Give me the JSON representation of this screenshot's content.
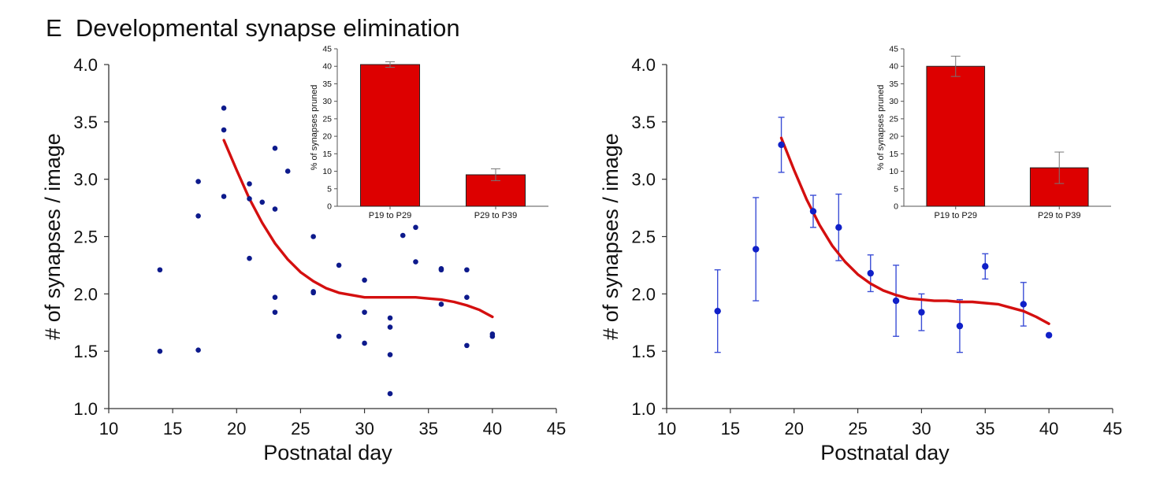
{
  "figure": {
    "panel_letter": "E",
    "title": "Developmental synapse elimination"
  },
  "colors": {
    "point": "#0d1a8c",
    "point_right": "#1020c8",
    "error_bar": "#3b4ed6",
    "fit_line": "#d40f0f",
    "bar_fill": "#dd0000",
    "axis": "#333333"
  },
  "chart_data": [
    {
      "type": "scatter",
      "xlabel": "Postnatal day",
      "ylabel": "# of synapses / image",
      "xlim": [
        10,
        45
      ],
      "ylim": [
        1.0,
        4.0
      ],
      "xticks": [
        10,
        15,
        20,
        25,
        30,
        35,
        40,
        45
      ],
      "yticks": [
        1.0,
        1.5,
        2.0,
        2.5,
        3.0,
        3.5,
        4.0
      ],
      "points": [
        {
          "x": 14,
          "y": 2.21
        },
        {
          "x": 14,
          "y": 1.5
        },
        {
          "x": 17,
          "y": 2.98
        },
        {
          "x": 17,
          "y": 2.68
        },
        {
          "x": 17,
          "y": 1.51
        },
        {
          "x": 19,
          "y": 3.62
        },
        {
          "x": 19,
          "y": 3.43
        },
        {
          "x": 19,
          "y": 2.85
        },
        {
          "x": 21,
          "y": 2.96
        },
        {
          "x": 21,
          "y": 2.83
        },
        {
          "x": 21,
          "y": 2.31
        },
        {
          "x": 22,
          "y": 2.8
        },
        {
          "x": 23,
          "y": 3.27
        },
        {
          "x": 23,
          "y": 2.74
        },
        {
          "x": 23,
          "y": 1.97
        },
        {
          "x": 23,
          "y": 1.84
        },
        {
          "x": 24,
          "y": 3.07
        },
        {
          "x": 26,
          "y": 2.5
        },
        {
          "x": 26,
          "y": 2.02
        },
        {
          "x": 26,
          "y": 2.01
        },
        {
          "x": 28,
          "y": 2.25
        },
        {
          "x": 28,
          "y": 1.63
        },
        {
          "x": 30,
          "y": 2.12
        },
        {
          "x": 30,
          "y": 1.84
        },
        {
          "x": 30,
          "y": 1.57
        },
        {
          "x": 32,
          "y": 1.79
        },
        {
          "x": 32,
          "y": 1.71
        },
        {
          "x": 32,
          "y": 1.47
        },
        {
          "x": 32,
          "y": 1.13
        },
        {
          "x": 33,
          "y": 2.51
        },
        {
          "x": 34,
          "y": 2.58
        },
        {
          "x": 34,
          "y": 2.28
        },
        {
          "x": 36,
          "y": 2.22
        },
        {
          "x": 36,
          "y": 2.21
        },
        {
          "x": 36,
          "y": 1.91
        },
        {
          "x": 38,
          "y": 2.21
        },
        {
          "x": 38,
          "y": 1.97
        },
        {
          "x": 38,
          "y": 1.55
        },
        {
          "x": 40,
          "y": 1.65
        },
        {
          "x": 40,
          "y": 1.63
        }
      ],
      "fit_curve": {
        "x": [
          19,
          20,
          21,
          22,
          23,
          24,
          25,
          26,
          27,
          28,
          29,
          30,
          31,
          32,
          33,
          34,
          35,
          36,
          37,
          38,
          39,
          40
        ],
        "y": [
          3.34,
          3.08,
          2.83,
          2.62,
          2.44,
          2.3,
          2.19,
          2.11,
          2.05,
          2.01,
          1.99,
          1.97,
          1.97,
          1.97,
          1.97,
          1.97,
          1.96,
          1.95,
          1.93,
          1.9,
          1.86,
          1.8
        ]
      },
      "inset": {
        "type": "bar",
        "categories": [
          "P19 to P29",
          "P29 to P39"
        ],
        "values": [
          40.5,
          9.0
        ],
        "errors": [
          0.8,
          1.7
        ],
        "ylabel": "% of synapses pruned",
        "ylim": [
          0,
          45
        ],
        "yticks": [
          0,
          5,
          10,
          15,
          20,
          25,
          30,
          35,
          40,
          45
        ]
      }
    },
    {
      "type": "scatter",
      "xlabel": "Postnatal day",
      "ylabel": "# of synapses / image",
      "xlim": [
        10,
        45
      ],
      "ylim": [
        1.0,
        4.0
      ],
      "xticks": [
        10,
        15,
        20,
        25,
        30,
        35,
        40,
        45
      ],
      "yticks": [
        1.0,
        1.5,
        2.0,
        2.5,
        3.0,
        3.5,
        4.0
      ],
      "points": [
        {
          "x": 14,
          "y": 1.85,
          "err": 0.36
        },
        {
          "x": 17,
          "y": 2.39,
          "err": 0.45
        },
        {
          "x": 19,
          "y": 3.3,
          "err": 0.24
        },
        {
          "x": 21.5,
          "y": 2.72,
          "err": 0.14
        },
        {
          "x": 23.5,
          "y": 2.58,
          "err": 0.29
        },
        {
          "x": 26,
          "y": 2.18,
          "err": 0.16
        },
        {
          "x": 28,
          "y": 1.94,
          "err": 0.31
        },
        {
          "x": 30,
          "y": 1.84,
          "err": 0.16
        },
        {
          "x": 33,
          "y": 1.72,
          "err": 0.23
        },
        {
          "x": 35,
          "y": 2.24,
          "err": 0.11
        },
        {
          "x": 38,
          "y": 1.91,
          "err": 0.19
        },
        {
          "x": 40,
          "y": 1.64,
          "err": 0
        }
      ],
      "fit_curve": {
        "x": [
          19,
          20,
          21,
          22,
          23,
          24,
          25,
          26,
          27,
          28,
          29,
          30,
          31,
          32,
          33,
          34,
          35,
          36,
          37,
          38,
          39,
          40
        ],
        "y": [
          3.36,
          3.08,
          2.82,
          2.6,
          2.42,
          2.28,
          2.17,
          2.09,
          2.03,
          1.99,
          1.96,
          1.95,
          1.94,
          1.94,
          1.93,
          1.93,
          1.92,
          1.91,
          1.88,
          1.85,
          1.8,
          1.74
        ]
      },
      "inset": {
        "type": "bar",
        "categories": [
          "P19 to P29",
          "P29 to P39"
        ],
        "values": [
          40.0,
          11.0
        ],
        "errors": [
          2.9,
          4.5
        ],
        "ylabel": "% of synapses pruned",
        "ylim": [
          0,
          45
        ],
        "yticks": [
          0,
          5,
          10,
          15,
          20,
          25,
          30,
          35,
          40,
          45
        ]
      }
    }
  ]
}
